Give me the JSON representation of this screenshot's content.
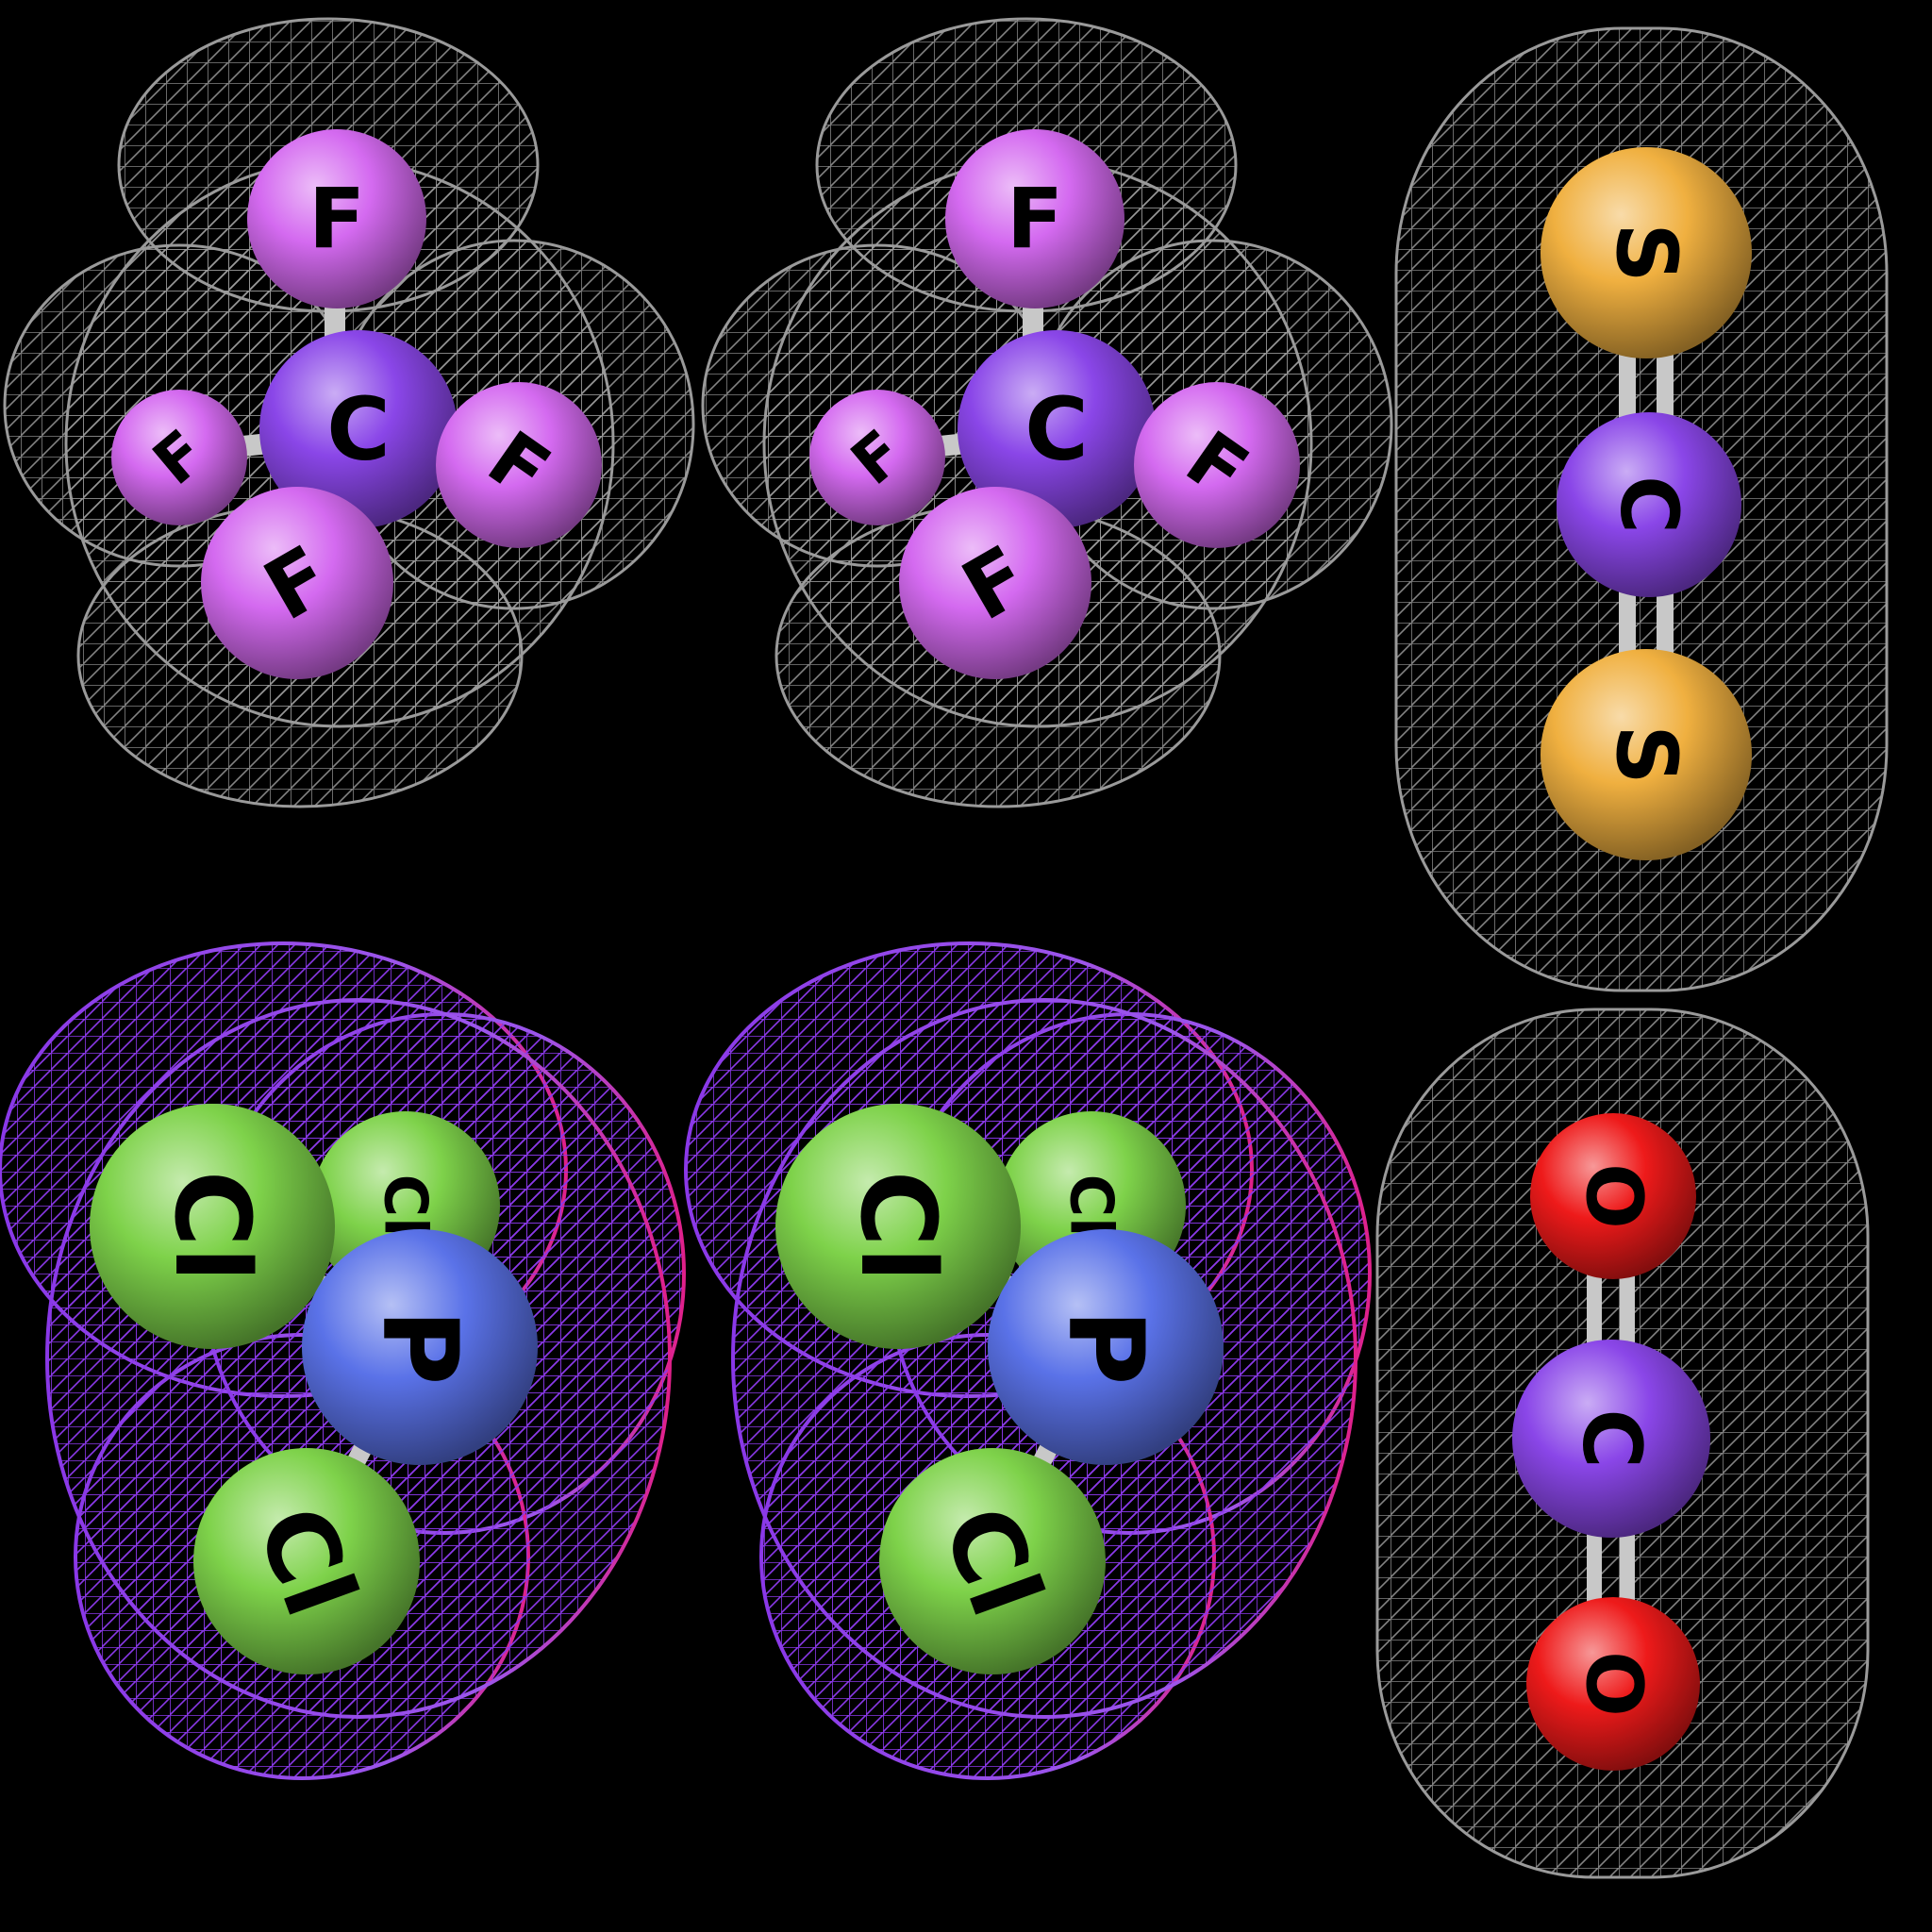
{
  "background": "#000000",
  "colors": {
    "fluorine": "#d46af0",
    "carbon": "#8a46e8",
    "sulfur": "#f0b040",
    "oxygen": "#ee1a1a",
    "chlorine": "#7ed24a",
    "phosphorus": "#5a72e8",
    "bond": "#c8c8c8",
    "mesh_gray": "#9a9a9a",
    "mesh_violet": "#8a38e8",
    "mesh_magenta": "#e0208a",
    "label": "#000000"
  },
  "molecules": [
    {
      "id": "cf4-a",
      "atoms": [
        {
          "element": "F",
          "label": "F",
          "color": "fluorine"
        },
        {
          "element": "F",
          "label": "F",
          "color": "fluorine"
        },
        {
          "element": "C",
          "label": "C",
          "color": "carbon"
        },
        {
          "element": "F",
          "label": "F",
          "color": "fluorine"
        },
        {
          "element": "F",
          "label": "F",
          "color": "fluorine"
        }
      ]
    },
    {
      "id": "cf4-b",
      "atoms": [
        {
          "element": "F",
          "label": "F",
          "color": "fluorine"
        },
        {
          "element": "F",
          "label": "F",
          "color": "fluorine"
        },
        {
          "element": "C",
          "label": "C",
          "color": "carbon"
        },
        {
          "element": "F",
          "label": "F",
          "color": "fluorine"
        },
        {
          "element": "F",
          "label": "F",
          "color": "fluorine"
        }
      ]
    },
    {
      "id": "cs2",
      "atoms": [
        {
          "element": "S",
          "label": "S",
          "color": "sulfur"
        },
        {
          "element": "C",
          "label": "C",
          "color": "carbon"
        },
        {
          "element": "S",
          "label": "S",
          "color": "sulfur"
        }
      ]
    },
    {
      "id": "pcl3-a",
      "atoms": [
        {
          "element": "Cl",
          "label": "Cl",
          "color": "chlorine"
        },
        {
          "element": "Cl",
          "label": "Cl",
          "color": "chlorine"
        },
        {
          "element": "P",
          "label": "P",
          "color": "phosphorus"
        },
        {
          "element": "Cl",
          "label": "Cl",
          "color": "chlorine"
        }
      ]
    },
    {
      "id": "pcl3-b",
      "atoms": [
        {
          "element": "Cl",
          "label": "Cl",
          "color": "chlorine"
        },
        {
          "element": "Cl",
          "label": "Cl",
          "color": "chlorine"
        },
        {
          "element": "P",
          "label": "P",
          "color": "phosphorus"
        },
        {
          "element": "Cl",
          "label": "Cl",
          "color": "chlorine"
        }
      ]
    },
    {
      "id": "co2",
      "atoms": [
        {
          "element": "O",
          "label": "O",
          "color": "oxygen"
        },
        {
          "element": "C",
          "label": "C",
          "color": "carbon"
        },
        {
          "element": "O",
          "label": "O",
          "color": "oxygen"
        }
      ]
    }
  ]
}
